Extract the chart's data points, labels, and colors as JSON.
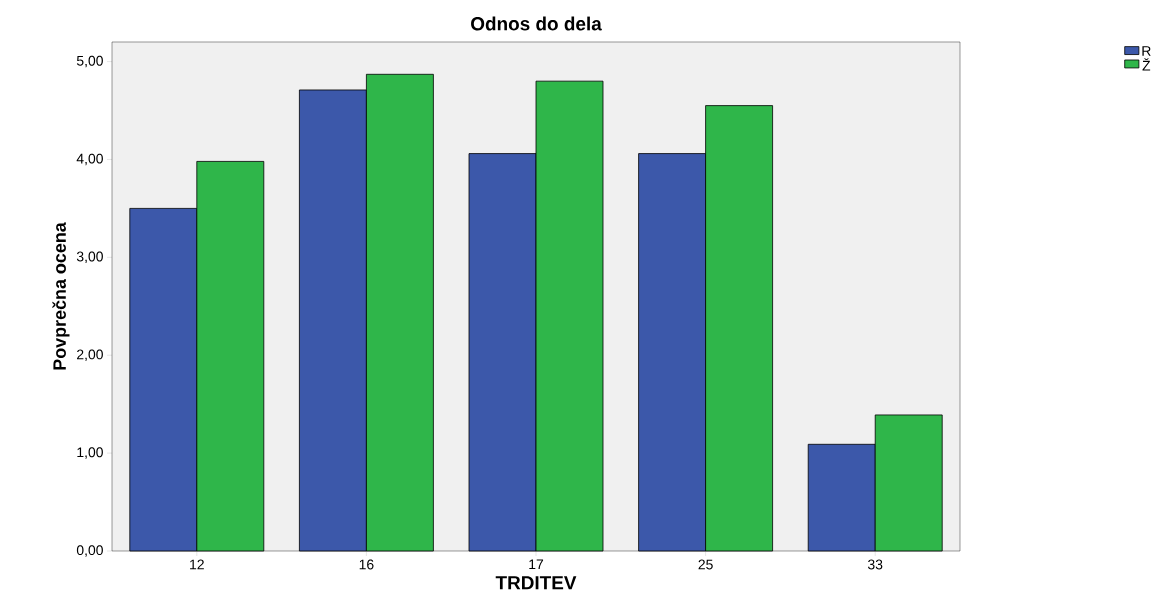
{
  "chart_data": {
    "type": "bar",
    "title": "Odnos do dela",
    "xlabel": "TRDITEV",
    "ylabel": "Povprečna ocena",
    "categories": [
      "12",
      "16",
      "17",
      "25",
      "33"
    ],
    "series": [
      {
        "name": "R",
        "color": "#3c58aa",
        "values": [
          3.5,
          4.71,
          4.06,
          4.06,
          1.09
        ]
      },
      {
        "name": "Ž",
        "color": "#2fb64a",
        "values": [
          3.98,
          4.87,
          4.8,
          4.55,
          1.39
        ]
      }
    ],
    "ylim": [
      0,
      5.2
    ],
    "yticks": [
      {
        "value": 0,
        "label": "0,00"
      },
      {
        "value": 1,
        "label": "1,00"
      },
      {
        "value": 2,
        "label": "2,00"
      },
      {
        "value": 3,
        "label": "3,00"
      },
      {
        "value": 4,
        "label": "4,00"
      },
      {
        "value": 5,
        "label": "5,00"
      }
    ],
    "grid": false,
    "legend": "top right"
  }
}
